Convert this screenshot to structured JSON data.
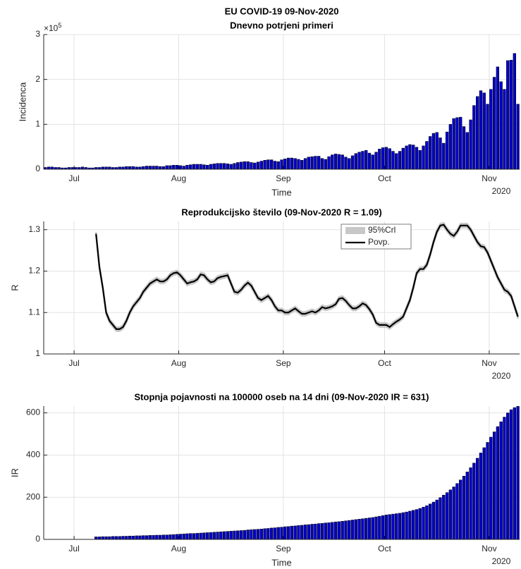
{
  "chart_data": [
    {
      "type": "bar",
      "title": "EU COVID-19 09-Nov-2020",
      "subtitle": "Dnevno potrjeni primeri",
      "xlabel": "Time",
      "ylabel": "Incidenca",
      "y_exponent": {
        "base": "×10",
        "exponent": "5"
      },
      "year_label": "2020",
      "categories": [
        null,
        null,
        null,
        null,
        null,
        null,
        null,
        null,
        null,
        "Jul",
        null,
        null,
        null,
        null,
        null,
        null,
        null,
        null,
        null,
        null,
        null,
        null,
        null,
        null,
        null,
        null,
        null,
        null,
        null,
        null,
        null,
        null,
        null,
        null,
        null,
        null,
        null,
        null,
        null,
        null,
        "Aug",
        null,
        null,
        null,
        null,
        null,
        null,
        null,
        null,
        null,
        null,
        null,
        null,
        null,
        null,
        null,
        null,
        null,
        null,
        null,
        null,
        null,
        null,
        null,
        null,
        null,
        null,
        null,
        null,
        null,
        null,
        "Sep",
        null,
        null,
        null,
        null,
        null,
        null,
        null,
        null,
        null,
        null,
        null,
        null,
        null,
        null,
        null,
        null,
        null,
        null,
        null,
        null,
        null,
        null,
        null,
        null,
        null,
        null,
        null,
        null,
        null,
        "Oct",
        null,
        null,
        null,
        null,
        null,
        null,
        null,
        null,
        null,
        null,
        null,
        null,
        null,
        null,
        null,
        null,
        null,
        null,
        null,
        null,
        null,
        null,
        null,
        null,
        null,
        null,
        null,
        null,
        null,
        null,
        "Nov",
        null,
        null,
        null,
        null,
        null,
        null,
        null,
        null
      ],
      "values": [
        0.04,
        0.05,
        0.05,
        0.04,
        0.04,
        0.03,
        0.03,
        0.04,
        0.04,
        0.04,
        0.04,
        0.05,
        0.04,
        0.03,
        0.03,
        0.04,
        0.04,
        0.05,
        0.05,
        0.05,
        0.04,
        0.04,
        0.05,
        0.05,
        0.06,
        0.06,
        0.06,
        0.05,
        0.05,
        0.06,
        0.07,
        0.07,
        0.07,
        0.07,
        0.06,
        0.06,
        0.08,
        0.08,
        0.09,
        0.09,
        0.08,
        0.07,
        0.09,
        0.1,
        0.11,
        0.11,
        0.11,
        0.1,
        0.09,
        0.11,
        0.12,
        0.13,
        0.13,
        0.13,
        0.12,
        0.11,
        0.13,
        0.15,
        0.16,
        0.17,
        0.17,
        0.15,
        0.14,
        0.16,
        0.18,
        0.2,
        0.21,
        0.21,
        0.18,
        0.17,
        0.21,
        0.23,
        0.25,
        0.25,
        0.24,
        0.22,
        0.2,
        0.24,
        0.27,
        0.28,
        0.29,
        0.29,
        0.24,
        0.22,
        0.28,
        0.32,
        0.34,
        0.33,
        0.32,
        0.27,
        0.24,
        0.3,
        0.35,
        0.38,
        0.4,
        0.42,
        0.36,
        0.32,
        0.38,
        0.45,
        0.48,
        0.49,
        0.46,
        0.4,
        0.35,
        0.4,
        0.47,
        0.52,
        0.55,
        0.54,
        0.49,
        0.42,
        0.52,
        0.62,
        0.73,
        0.8,
        0.82,
        0.7,
        0.58,
        0.83,
        1.0,
        1.13,
        1.15,
        1.16,
        0.95,
        0.82,
        1.1,
        1.42,
        1.62,
        1.75,
        1.7,
        1.45,
        1.78,
        2.05,
        2.28,
        1.95,
        1.78,
        2.42,
        2.43,
        2.58,
        1.45
      ],
      "color": "#0000cc",
      "ylim": [
        0,
        3
      ],
      "yticks": [
        0,
        1,
        2,
        3
      ],
      "grid": true
    },
    {
      "type": "line",
      "title": "Reprodukcijsko število (09-Nov-2020 R = 1.09)",
      "ylabel": "R",
      "year_label": "2020",
      "legend": "northeast",
      "categories": [
        null,
        null,
        null,
        null,
        null,
        null,
        null,
        null,
        null,
        "Jul",
        null,
        null,
        null,
        null,
        null,
        null,
        null,
        null,
        null,
        null,
        null,
        null,
        null,
        null,
        null,
        null,
        null,
        null,
        null,
        null,
        null,
        null,
        null,
        null,
        null,
        null,
        null,
        null,
        null,
        null,
        "Aug",
        null,
        null,
        null,
        null,
        null,
        null,
        null,
        null,
        null,
        null,
        null,
        null,
        null,
        null,
        null,
        null,
        null,
        null,
        null,
        null,
        null,
        null,
        null,
        null,
        null,
        null,
        null,
        null,
        null,
        null,
        "Sep",
        null,
        null,
        null,
        null,
        null,
        null,
        null,
        null,
        null,
        null,
        null,
        null,
        null,
        null,
        null,
        null,
        null,
        null,
        null,
        null,
        null,
        null,
        null,
        null,
        null,
        null,
        null,
        null,
        null,
        "Oct",
        null,
        null,
        null,
        null,
        null,
        null,
        null,
        null,
        null,
        null,
        null,
        null,
        null,
        null,
        null,
        null,
        null,
        null,
        null,
        null,
        null,
        null,
        null,
        null,
        null,
        null,
        null,
        null,
        null,
        null,
        "Nov",
        null,
        null,
        null,
        null,
        null,
        null,
        null,
        null
      ],
      "series": [
        {
          "name": "95%Crl",
          "color": "#c8c8c8",
          "lower": [
            null,
            null,
            null,
            null,
            null,
            null,
            null,
            null,
            null,
            null,
            null,
            null,
            null,
            null,
            null,
            1.285,
            1.205,
            1.155,
            1.095,
            1.075,
            1.065,
            1.055,
            1.055,
            1.06,
            1.075,
            1.095,
            1.11,
            1.12,
            1.13,
            1.145,
            1.155,
            1.165,
            1.17,
            1.175,
            1.17,
            1.17,
            1.175,
            1.185,
            1.19,
            1.192,
            1.185,
            1.175,
            1.165,
            1.168,
            1.17,
            1.175,
            1.187,
            1.185,
            1.175,
            1.168,
            1.17,
            1.178,
            1.181,
            1.183,
            1.185,
            1.165,
            1.145,
            1.143,
            1.15,
            1.16,
            1.167,
            1.16,
            1.145,
            1.13,
            1.125,
            1.13,
            1.135,
            1.125,
            1.11,
            1.1,
            1.1,
            1.095,
            1.095,
            1.1,
            1.105,
            1.098,
            1.092,
            1.092,
            1.095,
            1.098,
            1.095,
            1.1,
            1.108,
            1.105,
            1.107,
            1.11,
            1.115,
            1.128,
            1.13,
            1.123,
            1.113,
            1.105,
            1.105,
            1.11,
            1.117,
            1.113,
            1.103,
            1.09,
            1.07,
            1.065,
            1.065,
            1.065,
            1.06,
            1.067,
            1.073,
            1.078,
            1.085,
            1.105,
            1.125,
            1.155,
            1.19,
            1.2,
            1.2,
            1.21,
            1.235,
            1.265,
            1.29,
            1.305,
            1.307,
            1.295,
            1.285,
            1.28,
            1.29,
            1.305,
            1.305,
            1.305,
            1.295,
            1.28,
            1.265,
            1.255,
            1.253,
            1.24,
            1.22,
            1.2,
            1.18,
            1.165,
            1.15,
            1.145,
            1.135,
            1.11,
            1.085
          ],
          "upper": [
            null,
            null,
            null,
            null,
            null,
            null,
            null,
            null,
            null,
            null,
            null,
            null,
            null,
            null,
            null,
            1.295,
            1.215,
            1.165,
            1.105,
            1.085,
            1.075,
            1.065,
            1.065,
            1.07,
            1.085,
            1.105,
            1.12,
            1.13,
            1.14,
            1.155,
            1.165,
            1.175,
            1.18,
            1.185,
            1.18,
            1.18,
            1.185,
            1.195,
            1.2,
            1.202,
            1.195,
            1.185,
            1.175,
            1.178,
            1.18,
            1.185,
            1.197,
            1.195,
            1.185,
            1.178,
            1.18,
            1.188,
            1.191,
            1.193,
            1.195,
            1.175,
            1.155,
            1.153,
            1.16,
            1.17,
            1.177,
            1.17,
            1.155,
            1.14,
            1.135,
            1.14,
            1.145,
            1.135,
            1.12,
            1.11,
            1.11,
            1.105,
            1.105,
            1.11,
            1.115,
            1.108,
            1.102,
            1.102,
            1.105,
            1.108,
            1.105,
            1.11,
            1.118,
            1.115,
            1.117,
            1.12,
            1.125,
            1.138,
            1.14,
            1.133,
            1.123,
            1.115,
            1.115,
            1.12,
            1.127,
            1.123,
            1.113,
            1.1,
            1.08,
            1.075,
            1.075,
            1.075,
            1.07,
            1.077,
            1.083,
            1.088,
            1.095,
            1.115,
            1.135,
            1.165,
            1.2,
            1.21,
            1.21,
            1.22,
            1.245,
            1.275,
            1.3,
            1.315,
            1.317,
            1.305,
            1.295,
            1.29,
            1.3,
            1.315,
            1.315,
            1.315,
            1.305,
            1.29,
            1.275,
            1.265,
            1.263,
            1.25,
            1.23,
            1.21,
            1.19,
            1.175,
            1.16,
            1.155,
            1.145,
            1.12,
            1.095
          ]
        },
        {
          "name": "Povp.",
          "color": "#000000",
          "values": [
            null,
            null,
            null,
            null,
            null,
            null,
            null,
            null,
            null,
            null,
            null,
            null,
            null,
            null,
            null,
            1.29,
            1.21,
            1.16,
            1.1,
            1.08,
            1.07,
            1.06,
            1.06,
            1.065,
            1.08,
            1.1,
            1.115,
            1.125,
            1.135,
            1.15,
            1.16,
            1.17,
            1.175,
            1.18,
            1.175,
            1.175,
            1.18,
            1.19,
            1.195,
            1.197,
            1.19,
            1.18,
            1.17,
            1.173,
            1.175,
            1.18,
            1.192,
            1.19,
            1.18,
            1.173,
            1.175,
            1.183,
            1.186,
            1.188,
            1.19,
            1.17,
            1.15,
            1.148,
            1.155,
            1.165,
            1.172,
            1.165,
            1.15,
            1.135,
            1.13,
            1.135,
            1.14,
            1.13,
            1.115,
            1.105,
            1.105,
            1.1,
            1.1,
            1.105,
            1.11,
            1.103,
            1.097,
            1.097,
            1.1,
            1.103,
            1.1,
            1.105,
            1.113,
            1.11,
            1.112,
            1.115,
            1.12,
            1.133,
            1.135,
            1.128,
            1.118,
            1.11,
            1.11,
            1.115,
            1.122,
            1.118,
            1.108,
            1.095,
            1.075,
            1.07,
            1.07,
            1.07,
            1.065,
            1.072,
            1.078,
            1.083,
            1.09,
            1.11,
            1.13,
            1.16,
            1.195,
            1.205,
            1.205,
            1.215,
            1.24,
            1.27,
            1.295,
            1.31,
            1.312,
            1.3,
            1.29,
            1.285,
            1.295,
            1.31,
            1.31,
            1.31,
            1.3,
            1.285,
            1.27,
            1.26,
            1.258,
            1.245,
            1.225,
            1.205,
            1.185,
            1.17,
            1.155,
            1.15,
            1.14,
            1.115,
            1.09
          ]
        }
      ],
      "reference_line": {
        "value": 1,
        "color": "#ff0000"
      },
      "ylim": [
        1,
        1.32
      ],
      "yticks": [
        1,
        1.1,
        1.2,
        1.3
      ],
      "grid": true
    },
    {
      "type": "bar",
      "title": "Stopnja pojavnosti na 100000 oseb na 14 dni (09-Nov-2020 IR = 631)",
      "xlabel": "Time",
      "ylabel": "IR",
      "year_label": "2020",
      "categories": [
        null,
        null,
        null,
        null,
        null,
        null,
        null,
        null,
        null,
        "Jul",
        null,
        null,
        null,
        null,
        null,
        null,
        null,
        null,
        null,
        null,
        null,
        null,
        null,
        null,
        null,
        null,
        null,
        null,
        null,
        null,
        null,
        null,
        null,
        null,
        null,
        null,
        null,
        null,
        null,
        null,
        "Aug",
        null,
        null,
        null,
        null,
        null,
        null,
        null,
        null,
        null,
        null,
        null,
        null,
        null,
        null,
        null,
        null,
        null,
        null,
        null,
        null,
        null,
        null,
        null,
        null,
        null,
        null,
        null,
        null,
        null,
        null,
        "Sep",
        null,
        null,
        null,
        null,
        null,
        null,
        null,
        null,
        null,
        null,
        null,
        null,
        null,
        null,
        null,
        null,
        null,
        null,
        null,
        null,
        null,
        null,
        null,
        null,
        null,
        null,
        null,
        null,
        null,
        "Oct",
        null,
        null,
        null,
        null,
        null,
        null,
        null,
        null,
        null,
        null,
        null,
        null,
        null,
        null,
        null,
        null,
        null,
        null,
        null,
        null,
        null,
        null,
        null,
        null,
        null,
        null,
        null,
        null,
        null,
        null,
        "Nov",
        null,
        null,
        null,
        null,
        null,
        null,
        null,
        null
      ],
      "values": [
        null,
        null,
        null,
        null,
        null,
        null,
        null,
        null,
        null,
        null,
        null,
        null,
        null,
        null,
        null,
        12,
        12,
        13,
        13,
        13,
        14,
        14,
        14,
        15,
        15,
        16,
        16,
        17,
        17,
        18,
        18,
        19,
        19,
        20,
        20,
        21,
        21,
        22,
        23,
        24,
        25,
        26,
        27,
        28,
        28,
        29,
        30,
        31,
        32,
        33,
        34,
        35,
        36,
        37,
        38,
        39,
        40,
        41,
        42,
        43,
        45,
        46,
        47,
        48,
        49,
        51,
        52,
        54,
        55,
        57,
        58,
        60,
        61,
        63,
        64,
        66,
        67,
        69,
        70,
        72,
        73,
        75,
        76,
        78,
        79,
        81,
        83,
        84,
        86,
        88,
        90,
        92,
        94,
        96,
        98,
        100,
        102,
        104,
        107,
        110,
        113,
        116,
        118,
        120,
        122,
        124,
        127,
        130,
        134,
        138,
        142,
        147,
        153,
        160,
        168,
        177,
        187,
        198,
        210,
        222,
        235,
        249,
        265,
        282,
        300,
        320,
        340,
        362,
        385,
        410,
        435,
        460,
        485,
        510,
        535,
        558,
        580,
        600,
        615,
        625,
        631
      ],
      "color": "#0000cc",
      "ylim": [
        0,
        632
      ],
      "yticks": [
        0,
        200,
        400,
        600
      ],
      "grid": true
    }
  ]
}
